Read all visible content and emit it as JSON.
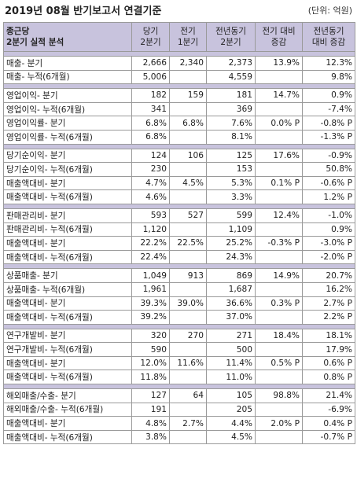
{
  "header": {
    "title": "2019년 08월 반기보고서 연결기준",
    "unit": "(단위: 억원)"
  },
  "table": {
    "columns": [
      {
        "line1": "종근당",
        "line2": "2분기 실적 분석"
      },
      {
        "line1": "당기",
        "line2": "2분기"
      },
      {
        "line1": "전기",
        "line2": "1분기"
      },
      {
        "line1": "전년동기",
        "line2": "2분기"
      },
      {
        "line1": "전기 대비",
        "line2": "증감"
      },
      {
        "line1": "전년동기",
        "line2": "대비 증감"
      }
    ],
    "groups": [
      {
        "rows": [
          {
            "label": "매출- 분기",
            "cur": "2,666",
            "prev": "2,340",
            "yoy": "2,373",
            "qoq_chg": "13.9%",
            "yoy_chg": "12.3%"
          },
          {
            "label": "매출- 누적(6개월)",
            "cur": "5,006",
            "prev": "",
            "yoy": "4,559",
            "qoq_chg": "",
            "yoy_chg": "9.8%"
          }
        ]
      },
      {
        "rows": [
          {
            "label": "영업이익- 분기",
            "cur": "182",
            "prev": "159",
            "yoy": "181",
            "qoq_chg": "14.7%",
            "yoy_chg": "0.9%"
          },
          {
            "label": "영업이익- 누적(6개월)",
            "cur": "341",
            "prev": "",
            "yoy": "369",
            "qoq_chg": "",
            "yoy_chg": "-7.4%"
          },
          {
            "label": "영업이익률- 분기",
            "cur": "6.8%",
            "prev": "6.8%",
            "yoy": "7.6%",
            "qoq_chg": "0.0% P",
            "yoy_chg": "-0.8% P"
          },
          {
            "label": "영업이익률- 누적(6개월)",
            "cur": "6.8%",
            "prev": "",
            "yoy": "8.1%",
            "qoq_chg": "",
            "yoy_chg": "-1.3% P"
          }
        ]
      },
      {
        "rows": [
          {
            "label": "당기순이익- 분기",
            "cur": "124",
            "prev": "106",
            "yoy": "125",
            "qoq_chg": "17.6%",
            "yoy_chg": "-0.9%"
          },
          {
            "label": "당기순이익- 누적(6개월)",
            "cur": "230",
            "prev": "",
            "yoy": "153",
            "qoq_chg": "",
            "yoy_chg": "50.8%"
          },
          {
            "label": "매출액대비- 분기",
            "cur": "4.7%",
            "prev": "4.5%",
            "yoy": "5.3%",
            "qoq_chg": "0.1% P",
            "yoy_chg": "-0.6% P"
          },
          {
            "label": "매출액대비- 누적(6개월)",
            "cur": "4.6%",
            "prev": "",
            "yoy": "3.3%",
            "qoq_chg": "",
            "yoy_chg": "1.2% P"
          }
        ]
      },
      {
        "rows": [
          {
            "label": "판매관리비- 분기",
            "cur": "593",
            "prev": "527",
            "yoy": "599",
            "qoq_chg": "12.4%",
            "yoy_chg": "-1.0%"
          },
          {
            "label": "판매관리비- 누적(6개월)",
            "cur": "1,120",
            "prev": "",
            "yoy": "1,109",
            "qoq_chg": "",
            "yoy_chg": "0.9%"
          },
          {
            "label": "매출액대비- 분기",
            "cur": "22.2%",
            "prev": "22.5%",
            "yoy": "25.2%",
            "qoq_chg": "-0.3% P",
            "yoy_chg": "-3.0% P"
          },
          {
            "label": "매출액대비- 누적(6개월)",
            "cur": "22.4%",
            "prev": "",
            "yoy": "24.3%",
            "qoq_chg": "",
            "yoy_chg": "-2.0% P"
          }
        ]
      },
      {
        "rows": [
          {
            "label": "상품매출- 분기",
            "cur": "1,049",
            "prev": "913",
            "yoy": "869",
            "qoq_chg": "14.9%",
            "yoy_chg": "20.7%"
          },
          {
            "label": "상품매출- 누적(6개월)",
            "cur": "1,961",
            "prev": "",
            "yoy": "1,687",
            "qoq_chg": "",
            "yoy_chg": "16.2%"
          },
          {
            "label": "매출액대비- 분기",
            "cur": "39.3%",
            "prev": "39.0%",
            "yoy": "36.6%",
            "qoq_chg": "0.3% P",
            "yoy_chg": "2.7% P"
          },
          {
            "label": "매출액대비- 누적(6개월)",
            "cur": "39.2%",
            "prev": "",
            "yoy": "37.0%",
            "qoq_chg": "",
            "yoy_chg": "2.2% P"
          }
        ]
      },
      {
        "rows": [
          {
            "label": "연구개발비- 분기",
            "cur": "320",
            "prev": "270",
            "yoy": "271",
            "qoq_chg": "18.4%",
            "yoy_chg": "18.1%"
          },
          {
            "label": "연구개발비- 누적(6개월)",
            "cur": "590",
            "prev": "",
            "yoy": "500",
            "qoq_chg": "",
            "yoy_chg": "17.9%"
          },
          {
            "label": "매출액대비- 분기",
            "cur": "12.0%",
            "prev": "11.6%",
            "yoy": "11.4%",
            "qoq_chg": "0.5% P",
            "yoy_chg": "0.6% P"
          },
          {
            "label": "매출액대비- 누적(6개월)",
            "cur": "11.8%",
            "prev": "",
            "yoy": "11.0%",
            "qoq_chg": "",
            "yoy_chg": "0.8% P"
          }
        ]
      },
      {
        "rows": [
          {
            "label": "해외매출/수출- 분기",
            "cur": "127",
            "prev": "64",
            "yoy": "105",
            "qoq_chg": "98.8%",
            "yoy_chg": "21.4%"
          },
          {
            "label": "해외매출/수출- 누적(6개월)",
            "cur": "191",
            "prev": "",
            "yoy": "205",
            "qoq_chg": "",
            "yoy_chg": "-6.9%"
          },
          {
            "label": "매출액대비- 분기",
            "cur": "4.8%",
            "prev": "2.7%",
            "yoy": "4.4%",
            "qoq_chg": "2.0% P",
            "yoy_chg": "0.4% P"
          },
          {
            "label": "매출액대비- 누적(6개월)",
            "cur": "3.8%",
            "prev": "",
            "yoy": "4.5%",
            "qoq_chg": "",
            "yoy_chg": "-0.7% P"
          }
        ]
      }
    ]
  }
}
